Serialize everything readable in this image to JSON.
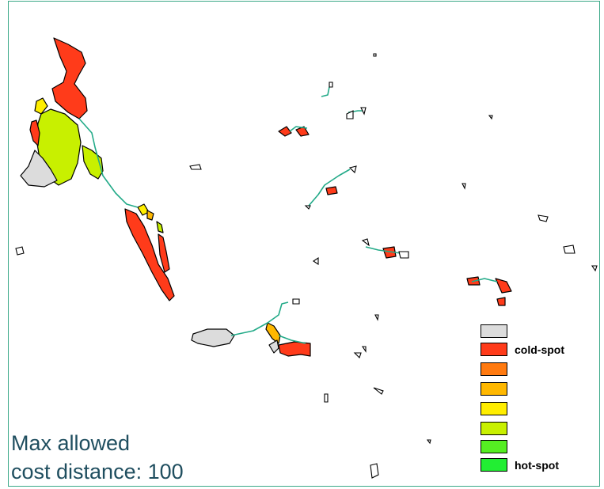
{
  "map": {
    "caption_line1": "Max allowed",
    "caption_line2": "cost distance: 100",
    "colors": {
      "frame": "#3aa887",
      "path": "#22aa88",
      "outline": "#000000",
      "caption_text": "#1f4e5f"
    },
    "legend": [
      {
        "color": "#dcdcdc",
        "label": ""
      },
      {
        "color": "#ff3b1a",
        "label": "cold-spot"
      },
      {
        "color": "#ff7a10",
        "label": ""
      },
      {
        "color": "#ffb800",
        "label": ""
      },
      {
        "color": "#ffee00",
        "label": ""
      },
      {
        "color": "#c8f000",
        "label": ""
      },
      {
        "color": "#55ee22",
        "label": ""
      },
      {
        "color": "#22ee33",
        "label": "hot-spot"
      }
    ]
  }
}
